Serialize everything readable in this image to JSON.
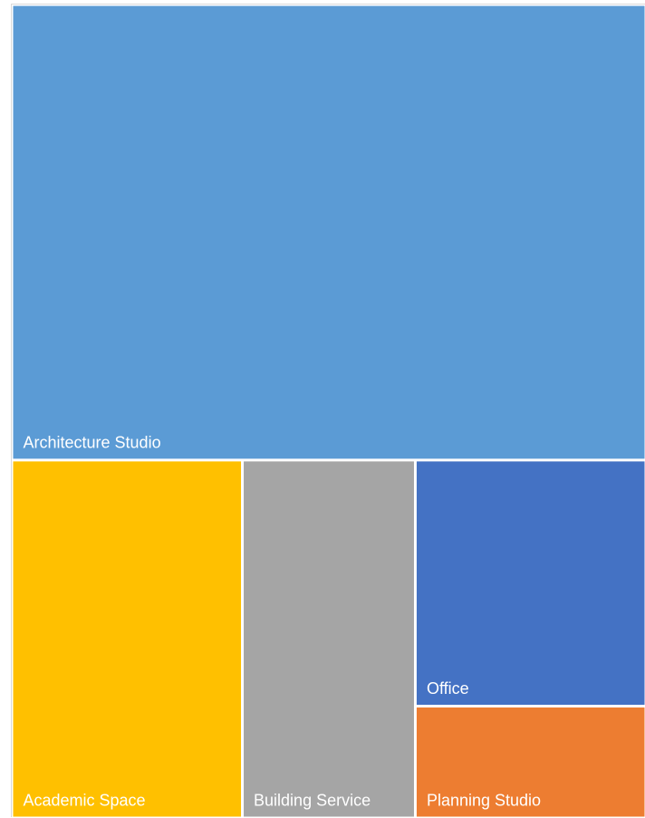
{
  "chart_data": {
    "type": "treemap",
    "title": "",
    "categories": [
      "Architecture Studio",
      "Academic Space",
      "Building Service",
      "Office",
      "Planning Studio"
    ],
    "values": [
      56,
      16,
      12,
      11,
      5
    ],
    "colors": [
      "#5B9BD5",
      "#FFC000",
      "#A5A5A5",
      "#4472C4",
      "#ED7D31"
    ],
    "legend": "none",
    "grid": false
  }
}
